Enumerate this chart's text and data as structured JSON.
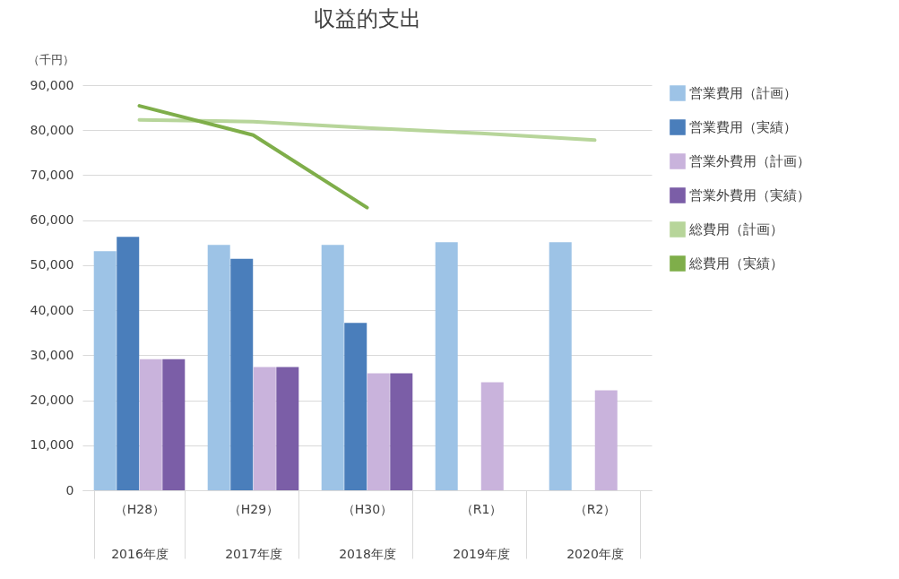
{
  "chart_data": {
    "type": "bar",
    "title": "収益的支出",
    "ylabel": "（千円）",
    "categories": [
      "（H28）\n2016年度",
      "（H29）\n2017年度",
      "（H30）\n2018年度",
      "（R1）\n2019年度",
      "（R2）\n2020年度"
    ],
    "series": [
      {
        "name": "営業費用（計画）",
        "color": "#9dc3e6",
        "values": [
          53100,
          54500,
          54500,
          55100,
          55100
        ]
      },
      {
        "name": "営業費用（実績）",
        "color": "#4a7ebb",
        "values": [
          56300,
          51400,
          37200,
          null,
          null
        ]
      },
      {
        "name": "営業外費用（計画）",
        "color": "#c9b3dc",
        "values": [
          29100,
          27400,
          26000,
          24000,
          22200
        ]
      },
      {
        "name": "営業外費用（実績）",
        "color": "#7b5ea7",
        "values": [
          29100,
          27400,
          26000,
          null,
          null
        ]
      },
      {
        "name": "総費用（計画）",
        "type": "line",
        "color": "#b7d59a",
        "values": [
          82300,
          81900,
          80500,
          79300,
          77800
        ]
      },
      {
        "name": "総費用（実績）",
        "type": "line",
        "color": "#7fae4a",
        "values": [
          85400,
          78900,
          62800,
          null,
          null
        ]
      }
    ],
    "ylim": [
      0,
      90000
    ],
    "yticks": [
      {
        "value": 0,
        "label": "0"
      },
      {
        "value": 10000,
        "label": "10,000"
      },
      {
        "value": 20000,
        "label": "20,000"
      },
      {
        "value": 30000,
        "label": "30,000"
      },
      {
        "value": 40000,
        "label": "40,000"
      },
      {
        "value": 50000,
        "label": "50,000"
      },
      {
        "value": 60000,
        "label": "60,000"
      },
      {
        "value": 70000,
        "label": "70,000"
      },
      {
        "value": 80000,
        "label": "80,000"
      },
      {
        "value": 90000,
        "label": "90,000"
      }
    ],
    "grid": "y",
    "legend": "right",
    "line_style": "solid",
    "marker": "none"
  }
}
